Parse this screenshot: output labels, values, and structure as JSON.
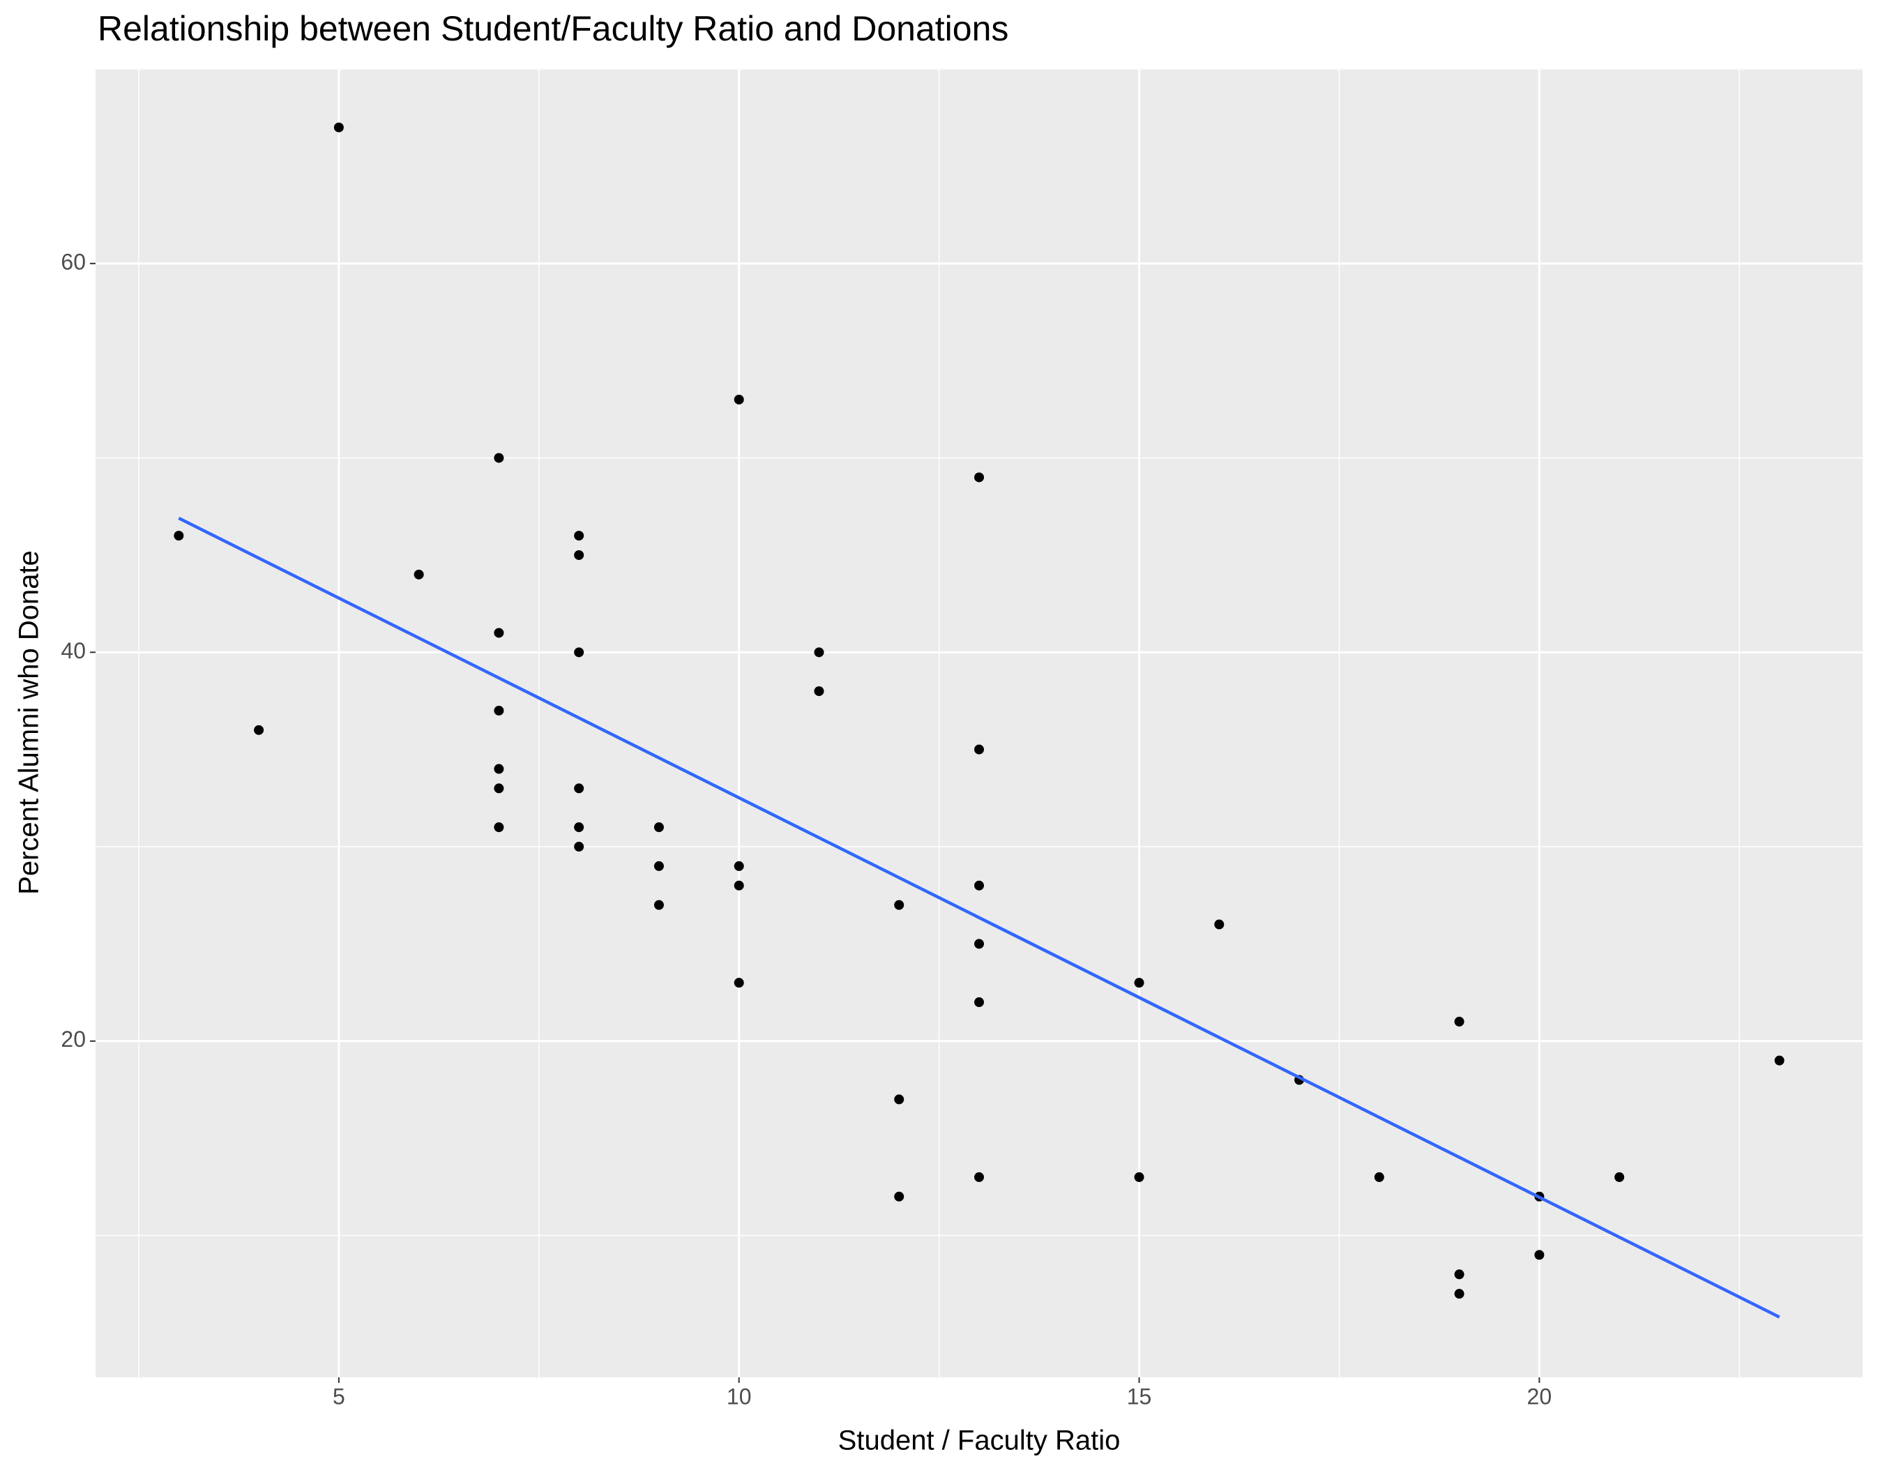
{
  "chart_data": {
    "type": "scatter",
    "title": "Relationship between Student/Faculty Ratio and Donations",
    "x_label": "Student / Faculty Ratio",
    "y_label": "Percent Alumni who Donate",
    "xlim": [
      1.96,
      24.04
    ],
    "ylim": [
      2.7,
      70.04
    ],
    "xticks": [
      5,
      10,
      15,
      20
    ],
    "yticks": [
      20,
      40,
      60
    ],
    "grid": true,
    "points": {
      "color": "#000000",
      "x": [
        3,
        4,
        5,
        6,
        7,
        7,
        7,
        7,
        7,
        7,
        8,
        8,
        8,
        8,
        8,
        8,
        9,
        9,
        9,
        10,
        10,
        10,
        10,
        11,
        11,
        12,
        12,
        12,
        13,
        13,
        13,
        13,
        13,
        13,
        15,
        15,
        16,
        17,
        18,
        19,
        19,
        19,
        20,
        20,
        21,
        23
      ],
      "values": [
        46,
        36,
        67,
        44,
        50,
        41,
        37,
        34,
        33,
        31,
        46,
        45,
        40,
        33,
        31,
        30,
        31,
        29,
        27,
        53,
        29,
        28,
        23,
        40,
        38,
        27,
        17,
        12,
        49,
        35,
        28,
        25,
        22,
        13,
        23,
        13,
        26,
        18,
        13,
        21,
        8,
        7,
        12,
        9,
        13,
        19
      ]
    },
    "trend": {
      "color": "#3366FF",
      "x": [
        3,
        23
      ],
      "values": [
        46.9,
        5.8
      ]
    }
  }
}
